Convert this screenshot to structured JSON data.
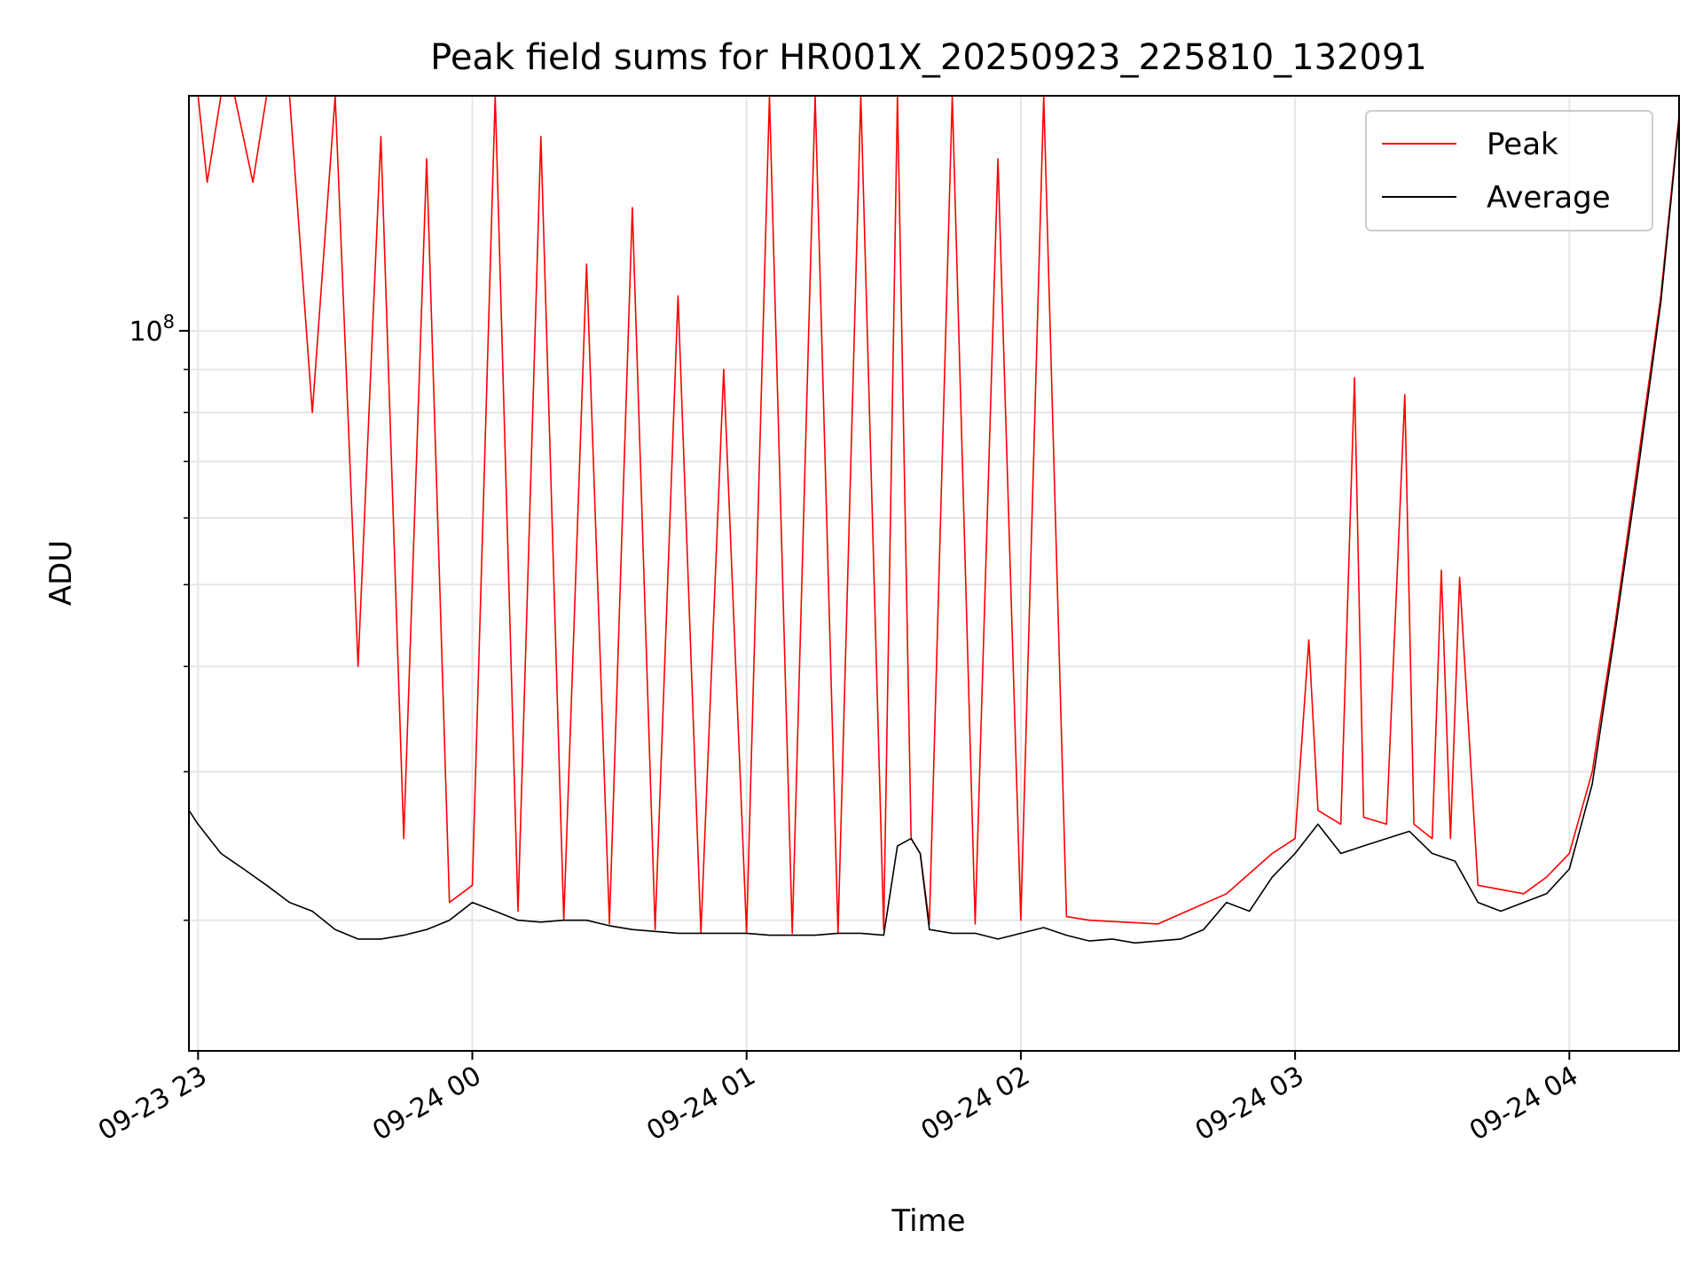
{
  "chart_data": {
    "type": "line",
    "title": "Peak field sums for HR001X_20250923_225810_132091",
    "xlabel": "Time",
    "ylabel": "ADU",
    "yscale": "log",
    "ylim": [
      14000000,
      190000000
    ],
    "xlim": [
      "2025-09-23 22:58",
      "2025-09-24 04:24"
    ],
    "grid": true,
    "legend_position": "top-right",
    "x_ticks": [
      {
        "t": "2025-09-23 23:00",
        "label": "09-23 23"
      },
      {
        "t": "2025-09-24 00:00",
        "label": "09-24 00"
      },
      {
        "t": "2025-09-24 01:00",
        "label": "09-24 01"
      },
      {
        "t": "2025-09-24 02:00",
        "label": "09-24 02"
      },
      {
        "t": "2025-09-24 03:00",
        "label": "09-24 03"
      },
      {
        "t": "2025-09-24 04:00",
        "label": "09-24 04"
      }
    ],
    "y_major_ticks": [
      {
        "value": 100000000,
        "label": "10^8"
      }
    ],
    "y_minor_ticks": [
      20000000,
      30000000,
      40000000,
      50000000,
      60000000,
      70000000,
      80000000,
      90000000
    ],
    "series": [
      {
        "name": "Peak",
        "color": "#ff0000",
        "points": [
          [
            "2025-09-23 22:58",
            190000000
          ],
          [
            "2025-09-23 23:00",
            190000000
          ],
          [
            "2025-09-23 23:02",
            150000000
          ],
          [
            "2025-09-23 23:05",
            190000000
          ],
          [
            "2025-09-23 23:08",
            190000000
          ],
          [
            "2025-09-23 23:12",
            150000000
          ],
          [
            "2025-09-23 23:15",
            190000000
          ],
          [
            "2025-09-23 23:20",
            190000000
          ],
          [
            "2025-09-23 23:25",
            80000000
          ],
          [
            "2025-09-23 23:30",
            190000000
          ],
          [
            "2025-09-23 23:35",
            40000000
          ],
          [
            "2025-09-23 23:40",
            170000000
          ],
          [
            "2025-09-23 23:45",
            25000000
          ],
          [
            "2025-09-23 23:50",
            160000000
          ],
          [
            "2025-09-23 23:55",
            21000000
          ],
          [
            "2025-09-24 00:00",
            22000000
          ],
          [
            "2025-09-24 00:05",
            190000000
          ],
          [
            "2025-09-24 00:10",
            20500000
          ],
          [
            "2025-09-24 00:15",
            170000000
          ],
          [
            "2025-09-24 00:20",
            20000000
          ],
          [
            "2025-09-24 00:25",
            120000000
          ],
          [
            "2025-09-24 00:30",
            19800000
          ],
          [
            "2025-09-24 00:35",
            140000000
          ],
          [
            "2025-09-24 00:40",
            19500000
          ],
          [
            "2025-09-24 00:45",
            110000000
          ],
          [
            "2025-09-24 00:50",
            19300000
          ],
          [
            "2025-09-24 00:55",
            90000000
          ],
          [
            "2025-09-24 01:00",
            19300000
          ],
          [
            "2025-09-24 01:05",
            190000000
          ],
          [
            "2025-09-24 01:10",
            19300000
          ],
          [
            "2025-09-24 01:15",
            190000000
          ],
          [
            "2025-09-24 01:20",
            19300000
          ],
          [
            "2025-09-24 01:25",
            190000000
          ],
          [
            "2025-09-24 01:30",
            19500000
          ],
          [
            "2025-09-24 01:33",
            190000000
          ],
          [
            "2025-09-24 01:36",
            25000000
          ],
          [
            "2025-09-24 01:38",
            24000000
          ],
          [
            "2025-09-24 01:40",
            19800000
          ],
          [
            "2025-09-24 01:45",
            190000000
          ],
          [
            "2025-09-24 01:50",
            19800000
          ],
          [
            "2025-09-24 01:55",
            160000000
          ],
          [
            "2025-09-24 02:00",
            20000000
          ],
          [
            "2025-09-24 02:05",
            190000000
          ],
          [
            "2025-09-24 02:10",
            20200000
          ],
          [
            "2025-09-24 02:15",
            20000000
          ],
          [
            "2025-09-24 02:30",
            19800000
          ],
          [
            "2025-09-24 02:45",
            21500000
          ],
          [
            "2025-09-24 02:55",
            24000000
          ],
          [
            "2025-09-24 03:00",
            25000000
          ],
          [
            "2025-09-24 03:03",
            43000000
          ],
          [
            "2025-09-24 03:05",
            27000000
          ],
          [
            "2025-09-24 03:10",
            26000000
          ],
          [
            "2025-09-24 03:13",
            88000000
          ],
          [
            "2025-09-24 03:15",
            26500000
          ],
          [
            "2025-09-24 03:20",
            26000000
          ],
          [
            "2025-09-24 03:24",
            84000000
          ],
          [
            "2025-09-24 03:26",
            26000000
          ],
          [
            "2025-09-24 03:30",
            25000000
          ],
          [
            "2025-09-24 03:32",
            52000000
          ],
          [
            "2025-09-24 03:34",
            25000000
          ],
          [
            "2025-09-24 03:36",
            51000000
          ],
          [
            "2025-09-24 03:40",
            22000000
          ],
          [
            "2025-09-24 03:50",
            21500000
          ],
          [
            "2025-09-24 03:55",
            22500000
          ],
          [
            "2025-09-24 04:00",
            24000000
          ],
          [
            "2025-09-24 04:05",
            30000000
          ],
          [
            "2025-09-24 04:10",
            45000000
          ],
          [
            "2025-09-24 04:15",
            70000000
          ],
          [
            "2025-09-24 04:20",
            110000000
          ],
          [
            "2025-09-24 04:24",
            180000000
          ]
        ]
      },
      {
        "name": "Average",
        "color": "#000000",
        "points": [
          [
            "2025-09-23 22:58",
            27000000
          ],
          [
            "2025-09-23 23:00",
            26000000
          ],
          [
            "2025-09-23 23:05",
            24000000
          ],
          [
            "2025-09-23 23:10",
            23000000
          ],
          [
            "2025-09-23 23:15",
            22000000
          ],
          [
            "2025-09-23 23:20",
            21000000
          ],
          [
            "2025-09-23 23:25",
            20500000
          ],
          [
            "2025-09-23 23:30",
            19500000
          ],
          [
            "2025-09-23 23:35",
            19000000
          ],
          [
            "2025-09-23 23:40",
            19000000
          ],
          [
            "2025-09-23 23:45",
            19200000
          ],
          [
            "2025-09-23 23:50",
            19500000
          ],
          [
            "2025-09-23 23:55",
            20000000
          ],
          [
            "2025-09-24 00:00",
            21000000
          ],
          [
            "2025-09-24 00:05",
            20500000
          ],
          [
            "2025-09-24 00:10",
            20000000
          ],
          [
            "2025-09-24 00:15",
            19900000
          ],
          [
            "2025-09-24 00:20",
            20000000
          ],
          [
            "2025-09-24 00:25",
            20000000
          ],
          [
            "2025-09-24 00:30",
            19700000
          ],
          [
            "2025-09-24 00:35",
            19500000
          ],
          [
            "2025-09-24 00:40",
            19400000
          ],
          [
            "2025-09-24 00:45",
            19300000
          ],
          [
            "2025-09-24 00:50",
            19300000
          ],
          [
            "2025-09-24 00:55",
            19300000
          ],
          [
            "2025-09-24 01:00",
            19300000
          ],
          [
            "2025-09-24 01:05",
            19200000
          ],
          [
            "2025-09-24 01:10",
            19200000
          ],
          [
            "2025-09-24 01:15",
            19200000
          ],
          [
            "2025-09-24 01:20",
            19300000
          ],
          [
            "2025-09-24 01:25",
            19300000
          ],
          [
            "2025-09-24 01:30",
            19200000
          ],
          [
            "2025-09-24 01:33",
            24500000
          ],
          [
            "2025-09-24 01:36",
            25000000
          ],
          [
            "2025-09-24 01:38",
            24000000
          ],
          [
            "2025-09-24 01:40",
            19500000
          ],
          [
            "2025-09-24 01:45",
            19300000
          ],
          [
            "2025-09-24 01:50",
            19300000
          ],
          [
            "2025-09-24 01:55",
            19000000
          ],
          [
            "2025-09-24 02:00",
            19300000
          ],
          [
            "2025-09-24 02:05",
            19600000
          ],
          [
            "2025-09-24 02:10",
            19200000
          ],
          [
            "2025-09-24 02:15",
            18900000
          ],
          [
            "2025-09-24 02:20",
            19000000
          ],
          [
            "2025-09-24 02:25",
            18800000
          ],
          [
            "2025-09-24 02:30",
            18900000
          ],
          [
            "2025-09-24 02:35",
            19000000
          ],
          [
            "2025-09-24 02:40",
            19500000
          ],
          [
            "2025-09-24 02:45",
            21000000
          ],
          [
            "2025-09-24 02:50",
            20500000
          ],
          [
            "2025-09-24 02:55",
            22500000
          ],
          [
            "2025-09-24 03:00",
            24000000
          ],
          [
            "2025-09-24 03:05",
            26000000
          ],
          [
            "2025-09-24 03:10",
            24000000
          ],
          [
            "2025-09-24 03:15",
            24500000
          ],
          [
            "2025-09-24 03:20",
            25000000
          ],
          [
            "2025-09-24 03:25",
            25500000
          ],
          [
            "2025-09-24 03:30",
            24000000
          ],
          [
            "2025-09-24 03:35",
            23500000
          ],
          [
            "2025-09-24 03:40",
            21000000
          ],
          [
            "2025-09-24 03:45",
            20500000
          ],
          [
            "2025-09-24 03:50",
            21000000
          ],
          [
            "2025-09-24 03:55",
            21500000
          ],
          [
            "2025-09-24 04:00",
            23000000
          ],
          [
            "2025-09-24 04:05",
            29000000
          ],
          [
            "2025-09-24 04:10",
            44000000
          ],
          [
            "2025-09-24 04:15",
            68000000
          ],
          [
            "2025-09-24 04:20",
            108000000
          ],
          [
            "2025-09-24 04:24",
            178000000
          ]
        ]
      }
    ]
  }
}
